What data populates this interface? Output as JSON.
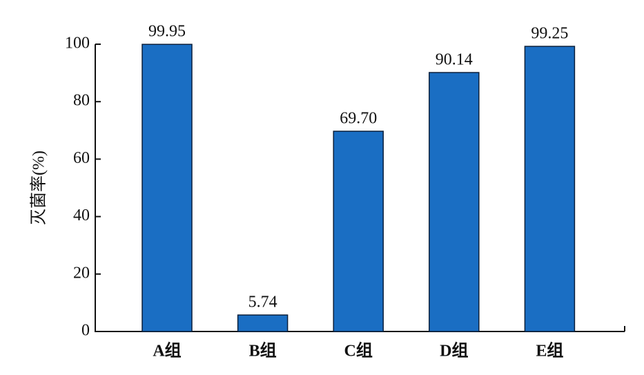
{
  "chart_data": {
    "type": "bar",
    "y_label": "灭菌率(%)",
    "categories": [
      "A组",
      "B组",
      "C组",
      "D组",
      "E组"
    ],
    "values": [
      99.95,
      5.74,
      69.7,
      90.14,
      99.25
    ],
    "value_labels": [
      "99.95",
      "5.74",
      "69.70",
      "90.14",
      "99.25"
    ],
    "color": "#1a6ec3",
    "ylim": [
      0,
      100
    ],
    "yticks": [
      0,
      20,
      40,
      60,
      80,
      100
    ],
    "grid": false
  }
}
